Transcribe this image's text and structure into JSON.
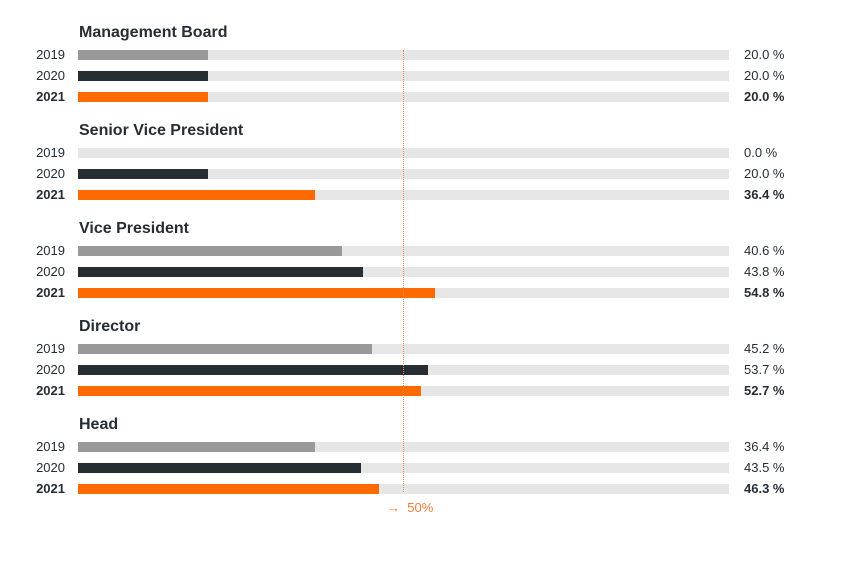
{
  "chart_data": {
    "type": "bar",
    "orientation": "horizontal",
    "xlim": [
      0,
      100
    ],
    "colors": {
      "2019": "#999999",
      "2020": "#262d33",
      "2021": "#ff6a00",
      "track": "#e6e6e6",
      "reference": "#f07c3a"
    },
    "reference_line": {
      "value": 50,
      "label": "50%",
      "arrow": "→"
    },
    "groups": [
      {
        "title": "Management Board",
        "rows": [
          {
            "year": "2019",
            "value": 20.0,
            "label": "20.0 %"
          },
          {
            "year": "2020",
            "value": 20.0,
            "label": "20.0 %"
          },
          {
            "year": "2021",
            "value": 20.0,
            "label": "20.0 %"
          }
        ]
      },
      {
        "title": "Senior Vice President",
        "rows": [
          {
            "year": "2019",
            "value": 0.0,
            "label": "0.0 %"
          },
          {
            "year": "2020",
            "value": 20.0,
            "label": "20.0 %"
          },
          {
            "year": "2021",
            "value": 36.4,
            "label": "36.4 %"
          }
        ]
      },
      {
        "title": "Vice President",
        "rows": [
          {
            "year": "2019",
            "value": 40.6,
            "label": "40.6 %"
          },
          {
            "year": "2020",
            "value": 43.8,
            "label": "43.8 %"
          },
          {
            "year": "2021",
            "value": 54.8,
            "label": "54.8 %"
          }
        ]
      },
      {
        "title": "Director",
        "rows": [
          {
            "year": "2019",
            "value": 45.2,
            "label": "45.2 %"
          },
          {
            "year": "2020",
            "value": 53.7,
            "label": "53.7 %"
          },
          {
            "year": "2021",
            "value": 52.7,
            "label": "52.7 %"
          }
        ]
      },
      {
        "title": "Head",
        "rows": [
          {
            "year": "2019",
            "value": 36.4,
            "label": "36.4 %"
          },
          {
            "year": "2020",
            "value": 43.5,
            "label": "43.5 %"
          },
          {
            "year": "2021",
            "value": 46.3,
            "label": "46.3 %"
          }
        ]
      }
    ]
  }
}
